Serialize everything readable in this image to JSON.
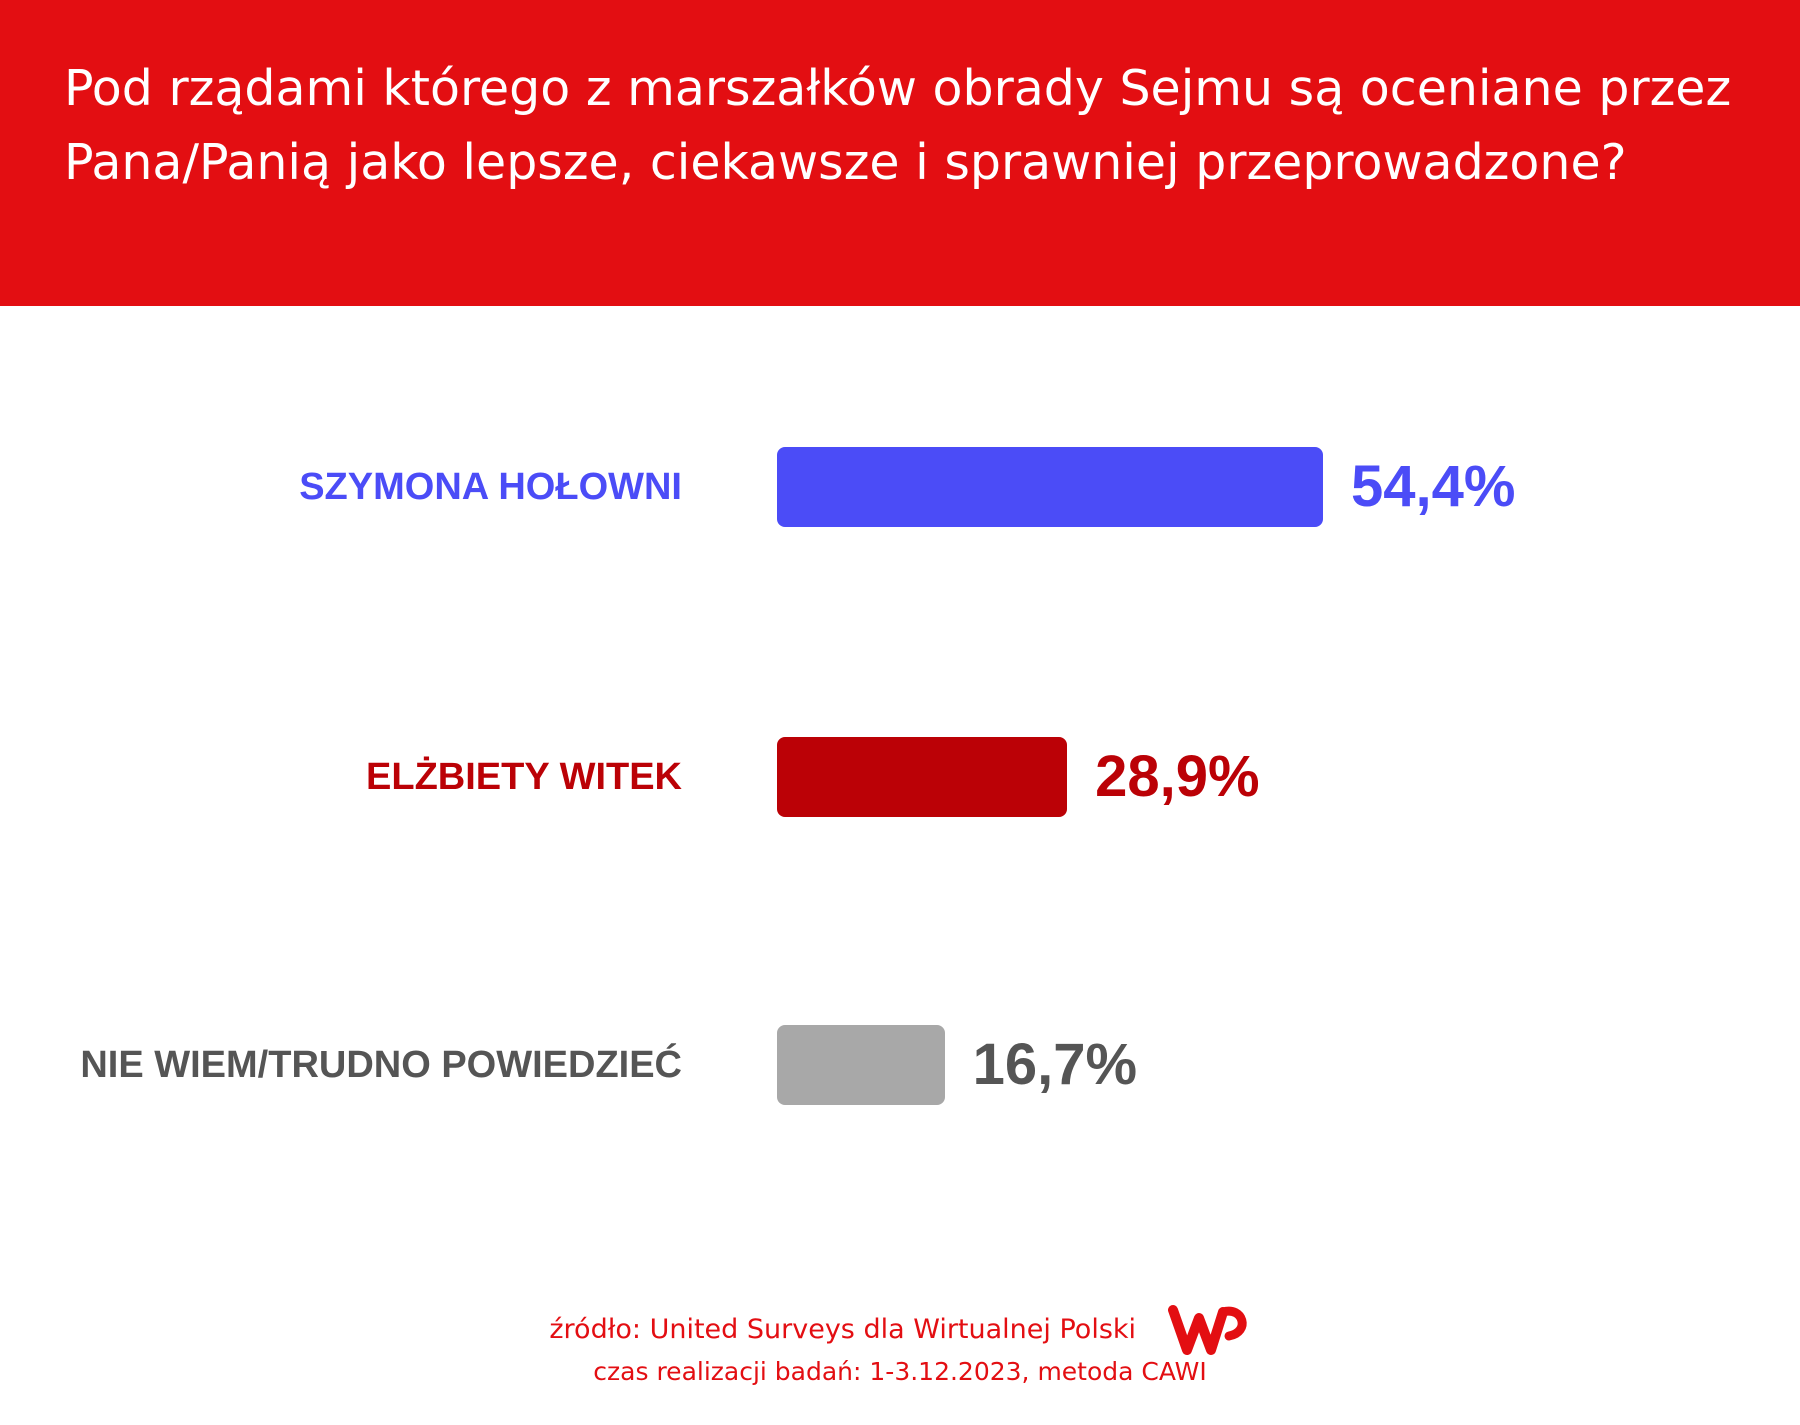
{
  "colors": {
    "header_bg": "#e30e12",
    "accent": "#e30e12"
  },
  "chart_data": {
    "type": "bar",
    "orientation": "horizontal",
    "title": "Pod rządami którego z marszałków obrady Sejmu są oceniane przez Pana/Panią jako lepsze, ciekawsze i sprawniej przeprowadzone?",
    "categories": [
      "SZYMONA HOŁOWNI",
      "ELŻBIETY WITEK",
      "NIE WIEM/TRUDNO POWIEDZIEĆ"
    ],
    "values": [
      54.4,
      28.9,
      16.7
    ],
    "value_labels": [
      "54,4%",
      "28,9%",
      "16,7%"
    ],
    "colors": [
      "#4b4cf7",
      "#bb0106",
      "#a8a8a8"
    ],
    "label_colors": [
      "#4b4cf7",
      "#bb0106",
      "#555555"
    ],
    "xlim": [
      0,
      100
    ],
    "grid": false,
    "legend": "none"
  },
  "footer": {
    "source": "źródło: United Surveys dla Wirtualnej Polski",
    "logo": "wp-logo",
    "period": "czas realizacji badań: 1-3.12.2023, metoda CAWI"
  }
}
